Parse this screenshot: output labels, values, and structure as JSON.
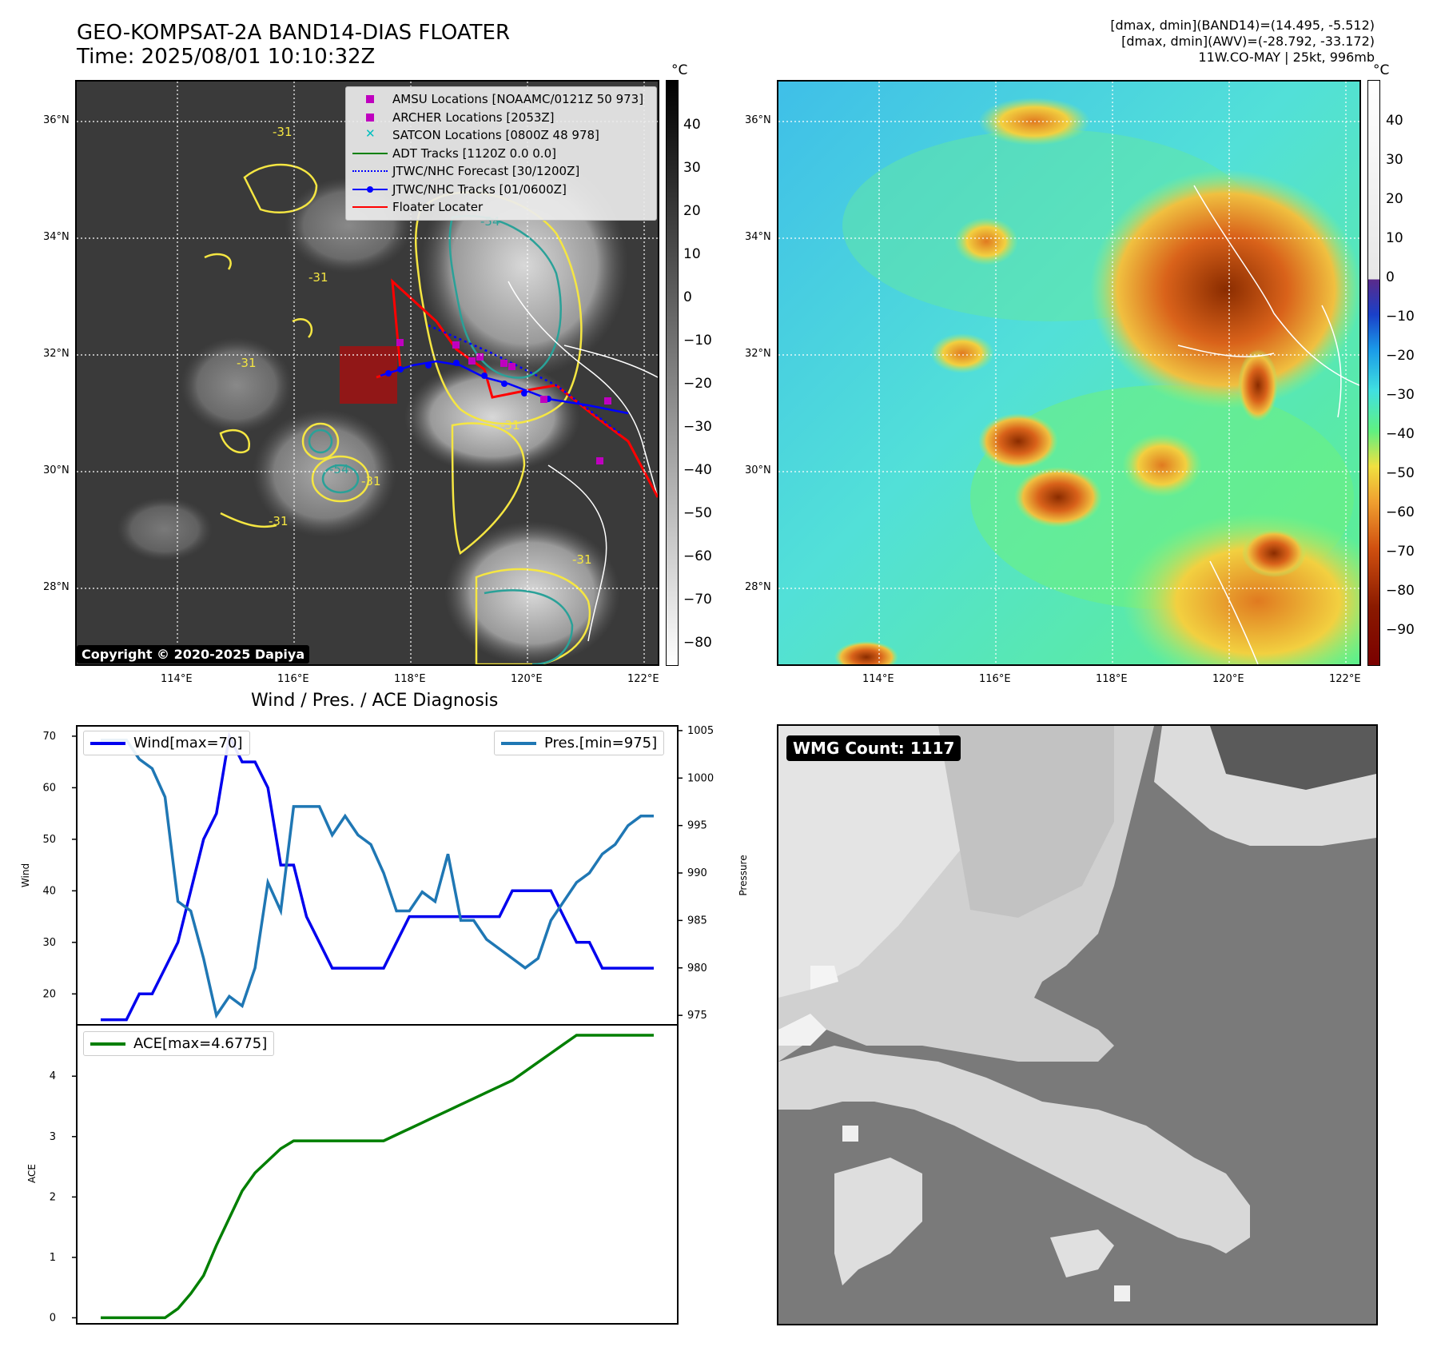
{
  "header": {
    "title_line1": "GEO-KOMPSAT-2A BAND14-DIAS FLOATER",
    "title_line2": "Time: 2025/08/01 10:10:32Z",
    "stats_line1": "[dmax, dmin](BAND14)=(14.495, -5.512)",
    "stats_line2": "[dmax, dmin](AWV)=(-28.792, -33.172)",
    "stats_line3": "11W.CO-MAY | 25kt, 996mb"
  },
  "ir_panel": {
    "lon_ticks": [
      "114°E",
      "116°E",
      "118°E",
      "120°E",
      "122°E"
    ],
    "lat_ticks": [
      "36°N",
      "34°N",
      "32°N",
      "30°N",
      "28°N"
    ],
    "colorbar_unit": "°C",
    "colorbar_ticks": [
      "40",
      "30",
      "20",
      "10",
      "0",
      "−10",
      "−20",
      "−30",
      "−40",
      "−50",
      "−60",
      "−70",
      "−80"
    ],
    "contour_labels": [
      "-31",
      "-54",
      "-31",
      "-31",
      "-31",
      "-54",
      "-31",
      "-31",
      "-31"
    ],
    "copyright": "Copyright © 2020-2025 Dapiya",
    "legend": [
      {
        "label": "AMSU Locations [NOAAMC/0121Z 50 973]",
        "color": "#bf00bf",
        "kind": "square"
      },
      {
        "label": "ARCHER Locations [2053Z]",
        "color": "#bf00bf",
        "kind": "square"
      },
      {
        "label": "SATCON Locations [0800Z 48 978]",
        "color": "#00bfbf",
        "kind": "x"
      },
      {
        "label": "ADT Tracks [1120Z 0.0 0.0]",
        "color": "#008000",
        "kind": "line"
      },
      {
        "label": "JTWC/NHC Forecast [30/1200Z]",
        "color": "#0000ff",
        "kind": "dotted"
      },
      {
        "label": "JTWC/NHC Tracks [01/0600Z]",
        "color": "#0000ff",
        "kind": "line-marker"
      },
      {
        "label": "Floater Locater",
        "color": "#ff0000",
        "kind": "line"
      }
    ]
  },
  "awv_panel": {
    "lon_ticks": [
      "114°E",
      "116°E",
      "118°E",
      "120°E",
      "122°E"
    ],
    "lat_ticks": [
      "36°N",
      "34°N",
      "32°N",
      "30°N",
      "28°N"
    ],
    "colorbar_unit": "°C",
    "colorbar_ticks": [
      "40",
      "30",
      "20",
      "10",
      "0",
      "−10",
      "−20",
      "−30",
      "−40",
      "−50",
      "−60",
      "−70",
      "−80",
      "−90"
    ]
  },
  "diag_panel": {
    "title": "Wind / Pres. / ACE Diagnosis",
    "wind_ylabel": "Wind",
    "pres_ylabel": "Pressure",
    "ace_ylabel": "ACE",
    "wind_legend": "Wind[max=70]",
    "pres_legend": "Pres.[min=975]",
    "ace_legend": "ACE[max=4.6775]"
  },
  "wmg_panel": {
    "label": "WMG Count: 1117"
  },
  "colors": {
    "wind": "#0000ee",
    "pressure": "#1f77b4",
    "ace": "#007f00",
    "track_red": "#ff0000",
    "contour_yellow": "#f5e642",
    "contour_teal": "#2aa198"
  },
  "chart_data": [
    {
      "type": "line",
      "title": "Wind / Pres. / ACE Diagnosis",
      "ylabel": "Wind",
      "ylim": [
        14,
        72
      ],
      "yticks": [
        20,
        30,
        40,
        50,
        60,
        70
      ],
      "series": [
        {
          "name": "Wind[max=70]",
          "x": [
            0,
            1,
            2,
            3,
            4,
            5,
            6,
            7,
            8,
            9,
            10,
            11,
            12,
            13,
            14,
            15,
            16,
            17,
            18,
            19,
            20,
            21,
            22,
            23,
            24,
            25,
            26,
            27,
            28,
            29,
            30,
            31,
            32,
            33,
            34,
            35,
            36,
            37,
            38,
            39,
            40,
            41,
            42,
            43
          ],
          "values": [
            15,
            15,
            15,
            20,
            20,
            25,
            30,
            40,
            50,
            55,
            70,
            65,
            65,
            60,
            45,
            45,
            35,
            30,
            25,
            25,
            25,
            25,
            25,
            30,
            35,
            35,
            35,
            35,
            35,
            35,
            35,
            35,
            40,
            40,
            40,
            40,
            35,
            30,
            30,
            25,
            25,
            25,
            25,
            25
          ]
        }
      ]
    },
    {
      "type": "line",
      "ylabel": "Pressure",
      "ylim": [
        974,
        1005.5
      ],
      "yticks": [
        975,
        980,
        985,
        990,
        995,
        1000,
        1005
      ],
      "series": [
        {
          "name": "Pres.[min=975]",
          "x": [
            0,
            1,
            2,
            3,
            4,
            5,
            6,
            7,
            8,
            9,
            10,
            11,
            12,
            13,
            14,
            15,
            16,
            17,
            18,
            19,
            20,
            21,
            22,
            23,
            24,
            25,
            26,
            27,
            28,
            29,
            30,
            31,
            32,
            33,
            34,
            35,
            36,
            37,
            38,
            39,
            40,
            41,
            42,
            43
          ],
          "values": [
            1004,
            1004,
            1004,
            1002,
            1001,
            998,
            987,
            986,
            981,
            975,
            977,
            976,
            980,
            989,
            986,
            997,
            997,
            997,
            994,
            996,
            994,
            993,
            990,
            986,
            986,
            988,
            987,
            992,
            985,
            985,
            983,
            982,
            981,
            980,
            981,
            985,
            987,
            989,
            990,
            992,
            993,
            995,
            996,
            996
          ]
        }
      ]
    },
    {
      "type": "line",
      "ylabel": "ACE",
      "ylim": [
        -0.1,
        4.85
      ],
      "yticks": [
        0,
        1,
        2,
        3,
        4
      ],
      "series": [
        {
          "name": "ACE[max=4.6775]",
          "x": [
            0,
            1,
            2,
            3,
            4,
            5,
            6,
            7,
            8,
            9,
            10,
            11,
            12,
            13,
            14,
            15,
            16,
            17,
            18,
            19,
            20,
            21,
            22,
            23,
            24,
            25,
            26,
            27,
            28,
            29,
            30,
            31,
            32,
            33,
            34,
            35,
            36,
            37,
            38,
            39,
            40,
            41,
            42,
            43
          ],
          "values": [
            0,
            0,
            0,
            0,
            0,
            0,
            0.15,
            0.4,
            0.7,
            1.2,
            1.65,
            2.1,
            2.4,
            2.6,
            2.8,
            2.93,
            2.93,
            2.93,
            2.93,
            2.93,
            2.93,
            2.93,
            2.93,
            3.03,
            3.13,
            3.23,
            3.33,
            3.43,
            3.53,
            3.63,
            3.73,
            3.83,
            3.93,
            4.08,
            4.23,
            4.38,
            4.53,
            4.6775,
            4.6775,
            4.6775,
            4.6775,
            4.6775,
            4.6775,
            4.6775
          ]
        }
      ]
    }
  ]
}
